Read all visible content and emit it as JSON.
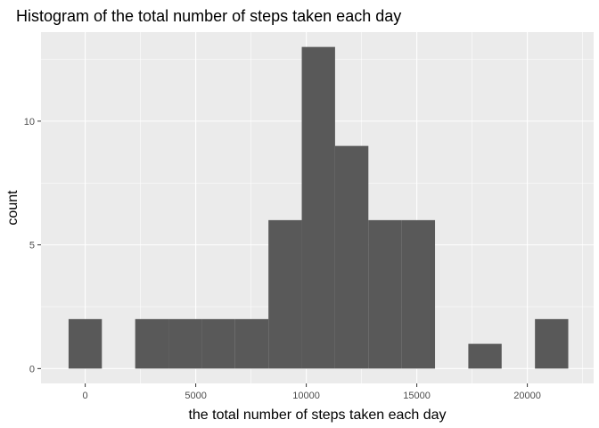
{
  "chart_data": {
    "type": "bar",
    "title": "Histogram of the total number of steps taken each day",
    "xlabel": "the total number of steps taken each day",
    "ylabel": "count",
    "xlim": [
      -2000,
      23000
    ],
    "ylim": [
      -0.6,
      13.6
    ],
    "x_ticks": [
      {
        "value": 0,
        "label": "0"
      },
      {
        "value": 5000,
        "label": "5000"
      },
      {
        "value": 10000,
        "label": "10000"
      },
      {
        "value": 15000,
        "label": "15000"
      },
      {
        "value": 20000,
        "label": "20000"
      }
    ],
    "y_ticks": [
      {
        "value": 0,
        "label": "0"
      },
      {
        "value": 5,
        "label": "5"
      },
      {
        "value": 10,
        "label": "10"
      }
    ],
    "bin_width": 1507,
    "bins": [
      {
        "x_start": -753,
        "x_end": 754,
        "count": 2
      },
      {
        "x_start": 754,
        "x_end": 2261,
        "count": 0
      },
      {
        "x_start": 2261,
        "x_end": 3768,
        "count": 2
      },
      {
        "x_start": 3768,
        "x_end": 5275,
        "count": 2
      },
      {
        "x_start": 5275,
        "x_end": 6782,
        "count": 2
      },
      {
        "x_start": 6782,
        "x_end": 8289,
        "count": 2
      },
      {
        "x_start": 8289,
        "x_end": 9796,
        "count": 6
      },
      {
        "x_start": 9796,
        "x_end": 11303,
        "count": 13
      },
      {
        "x_start": 11303,
        "x_end": 12810,
        "count": 9
      },
      {
        "x_start": 12810,
        "x_end": 14317,
        "count": 6
      },
      {
        "x_start": 14317,
        "x_end": 15824,
        "count": 6
      },
      {
        "x_start": 15824,
        "x_end": 17331,
        "count": 0
      },
      {
        "x_start": 17331,
        "x_end": 18838,
        "count": 1
      },
      {
        "x_start": 18838,
        "x_end": 20345,
        "count": 0
      },
      {
        "x_start": 20345,
        "x_end": 21852,
        "count": 2
      }
    ],
    "grid": true,
    "legend": "none",
    "colors": {
      "panel_background": "#ebebeb",
      "grid_major": "#ffffff",
      "bar_fill": "#595959",
      "tick_mark": "#333333"
    }
  }
}
